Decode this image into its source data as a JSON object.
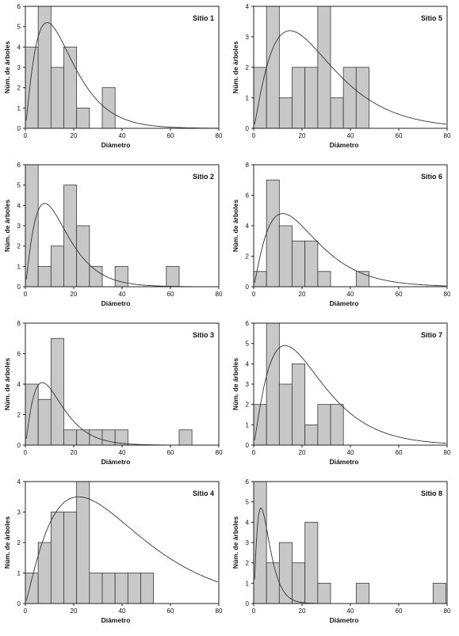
{
  "chart_data": [
    {
      "type": "bar",
      "title": "Sitio 1",
      "xlabel": "Diámetro",
      "ylabel": "Núm. de árboles",
      "xlim": [
        0,
        80
      ],
      "ylim": [
        0,
        6
      ],
      "bin_width": 5.3,
      "bin_start": 0,
      "values": [
        4,
        6,
        3,
        4,
        1,
        0,
        2
      ],
      "curve": {
        "mode": 9,
        "peak": 5.2
      },
      "x_ticks": [
        0,
        20,
        40,
        60,
        80
      ],
      "y_ticks": [
        0,
        1,
        2,
        3,
        4,
        5,
        6
      ]
    },
    {
      "type": "bar",
      "title": "Sitio 5",
      "xlabel": "Diámetro",
      "ylabel": "Núm. de árboles",
      "xlim": [
        0,
        80
      ],
      "ylim": [
        0,
        4
      ],
      "bin_width": 5.3,
      "bin_start": 0,
      "values": [
        2,
        4,
        1,
        2,
        2,
        4,
        1,
        2,
        2
      ],
      "curve": {
        "mode": 15,
        "peak": 3.2
      },
      "x_ticks": [
        0,
        20,
        40,
        60,
        80
      ],
      "y_ticks": [
        0,
        1,
        2,
        3,
        4
      ]
    },
    {
      "type": "bar",
      "title": "Sitio 2",
      "xlabel": "Diámetro",
      "ylabel": "Núm. de árboles",
      "xlim": [
        0,
        80
      ],
      "ylim": [
        0,
        6
      ],
      "bin_width": 5.3,
      "bin_start": 0,
      "values": [
        6,
        1,
        2,
        5,
        3,
        1,
        0,
        1,
        0,
        0,
        0,
        1
      ],
      "curve": {
        "mode": 8,
        "peak": 4.1
      },
      "x_ticks": [
        0,
        20,
        40,
        60,
        80
      ],
      "y_ticks": [
        0,
        1,
        2,
        3,
        4,
        5,
        6
      ]
    },
    {
      "type": "bar",
      "title": "Sitio 6",
      "xlabel": "Diámetro",
      "ylabel": "Núm. de árboles",
      "xlim": [
        0,
        80
      ],
      "ylim": [
        0,
        8
      ],
      "bin_width": 5.3,
      "bin_start": 0,
      "values": [
        1,
        7,
        4,
        3,
        3,
        1,
        0,
        0,
        1
      ],
      "curve": {
        "mode": 12,
        "peak": 4.8
      },
      "x_ticks": [
        0,
        20,
        40,
        60,
        80
      ],
      "y_ticks": [
        0,
        2,
        4,
        6,
        8
      ]
    },
    {
      "type": "bar",
      "title": "Sitio 3",
      "xlabel": "Diámetro",
      "ylabel": "Núm. de árboles",
      "xlim": [
        0,
        80
      ],
      "ylim": [
        0,
        8
      ],
      "bin_width": 5.3,
      "bin_start": 0,
      "values": [
        4,
        3,
        7,
        1,
        1,
        1,
        1,
        1,
        0,
        0,
        0,
        0,
        1
      ],
      "curve": {
        "mode": 7,
        "peak": 4.1
      },
      "x_ticks": [
        0,
        20,
        40,
        60,
        80
      ],
      "y_ticks": [
        0,
        2,
        4,
        6,
        8
      ]
    },
    {
      "type": "bar",
      "title": "Sitio 7",
      "xlabel": "Diámetro",
      "ylabel": "Núm. de árboles",
      "xlim": [
        0,
        80
      ],
      "ylim": [
        0,
        6
      ],
      "bin_width": 5.3,
      "bin_start": 0,
      "values": [
        2,
        6,
        3,
        4,
        1,
        2,
        2
      ],
      "curve": {
        "mode": 13,
        "peak": 4.9
      },
      "x_ticks": [
        0,
        20,
        40,
        60,
        80
      ],
      "y_ticks": [
        0,
        1,
        2,
        3,
        4,
        5,
        6
      ]
    },
    {
      "type": "bar",
      "title": "Sitio 4",
      "xlabel": "Diámetro",
      "ylabel": "Núm. de árboles",
      "xlim": [
        0,
        80
      ],
      "ylim": [
        0,
        4
      ],
      "bin_width": 5.3,
      "bin_start": 0,
      "values": [
        1,
        2,
        3,
        3,
        4,
        1,
        1,
        1,
        1,
        1
      ],
      "curve": {
        "mode": 22,
        "peak": 3.5
      },
      "x_ticks": [
        0,
        20,
        40,
        60,
        80
      ],
      "y_ticks": [
        0,
        1,
        2,
        3,
        4
      ]
    },
    {
      "type": "bar",
      "title": "Sitio 8",
      "xlabel": "Diámetro",
      "ylabel": "Núm. de árboles",
      "xlim": [
        0,
        80
      ],
      "ylim": [
        0,
        6
      ],
      "bin_width": 5.3,
      "bin_start": 0,
      "values": [
        6,
        2,
        3,
        2,
        4,
        1,
        0,
        0,
        1,
        0,
        0,
        0,
        0,
        0,
        1
      ],
      "curve": {
        "mode": 3,
        "peak": 4.7
      },
      "x_ticks": [
        0,
        20,
        40,
        60,
        80
      ],
      "y_ticks": [
        0,
        1,
        2,
        3,
        4,
        5,
        6
      ]
    }
  ],
  "colors": {
    "bar_fill": "#c8c8c8",
    "bar_stroke": "#3a3a3a",
    "axis": "#222222",
    "curve": "#333333"
  }
}
